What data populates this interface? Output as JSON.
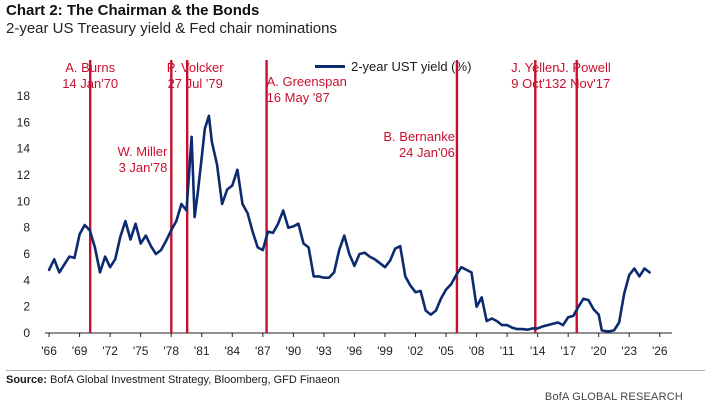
{
  "header": {
    "title": "Chart 2: The Chairman & the Bonds",
    "subtitle": "2-year US Treasury yield & Fed chair nominations"
  },
  "footer": {
    "source_label": "Source:",
    "source_text": "BofA Global Investment Strategy, Bloomberg, GFD Finaeon",
    "brand": "BofA GLOBAL RESEARCH"
  },
  "colors": {
    "series": "#0c2b6e",
    "events": "#c8102e",
    "annotations": "#c8102e",
    "axis": "#222222"
  },
  "chart_data": {
    "type": "line",
    "title": "2-year US Treasury yield & Fed chair nominations",
    "xlabel": "",
    "ylabel": "",
    "xlim": [
      1965.6,
      2027.2
    ],
    "ylim": [
      0,
      18
    ],
    "yticks": [
      0,
      2,
      4,
      6,
      8,
      10,
      12,
      14,
      16,
      18
    ],
    "xticks": [
      "'66",
      "'69",
      "'72",
      "'75",
      "'78",
      "'81",
      "'84",
      "'87",
      "'90",
      "'93",
      "'96",
      "'99",
      "'02",
      "'05",
      "'08",
      "'11",
      "'14",
      "'17",
      "'20",
      "'23",
      "'26"
    ],
    "xtick_years": [
      1966,
      1969,
      1972,
      1975,
      1978,
      1981,
      1984,
      1987,
      1990,
      1993,
      1996,
      1999,
      2002,
      2005,
      2008,
      2011,
      2014,
      2017,
      2020,
      2023,
      2026
    ],
    "legend": "2-year UST yield (%)",
    "series": [
      {
        "name": "2-year UST yield (%)",
        "x": [
          1966.0,
          1966.5,
          1967.0,
          1967.5,
          1968.0,
          1968.5,
          1969.0,
          1969.5,
          1970.0,
          1970.5,
          1971.0,
          1971.5,
          1972.0,
          1972.5,
          1973.0,
          1973.5,
          1974.0,
          1974.5,
          1975.0,
          1975.5,
          1976.0,
          1976.5,
          1977.0,
          1977.5,
          1978.0,
          1978.5,
          1979.0,
          1979.5,
          1980.0,
          1980.3,
          1980.6,
          1981.0,
          1981.3,
          1981.7,
          1982.0,
          1982.5,
          1983.0,
          1983.5,
          1984.0,
          1984.5,
          1985.0,
          1985.5,
          1986.0,
          1986.5,
          1987.0,
          1987.5,
          1988.0,
          1988.5,
          1989.0,
          1989.5,
          1990.0,
          1990.5,
          1991.0,
          1991.5,
          1992.0,
          1992.5,
          1993.0,
          1993.5,
          1994.0,
          1994.5,
          1995.0,
          1995.5,
          1996.0,
          1996.5,
          1997.0,
          1997.5,
          1998.0,
          1998.5,
          1999.0,
          1999.5,
          2000.0,
          2000.5,
          2001.0,
          2001.5,
          2002.0,
          2002.5,
          2003.0,
          2003.5,
          2004.0,
          2004.5,
          2005.0,
          2005.5,
          2006.0,
          2006.5,
          2007.0,
          2007.5,
          2008.0,
          2008.5,
          2009.0,
          2009.5,
          2010.0,
          2010.5,
          2011.0,
          2011.5,
          2012.0,
          2012.5,
          2013.0,
          2013.5,
          2014.0,
          2014.5,
          2015.0,
          2015.5,
          2016.0,
          2016.5,
          2017.0,
          2017.5,
          2018.0,
          2018.5,
          2019.0,
          2019.5,
          2020.0,
          2020.3,
          2020.6,
          2021.0,
          2021.5,
          2022.0,
          2022.5,
          2023.0,
          2023.5,
          2024.0,
          2024.5,
          2025.0
        ],
        "values": [
          4.8,
          5.6,
          4.6,
          5.2,
          5.8,
          5.7,
          7.5,
          8.2,
          7.8,
          6.5,
          4.6,
          5.8,
          5.0,
          5.6,
          7.3,
          8.5,
          7.1,
          8.3,
          6.8,
          7.4,
          6.6,
          6.0,
          6.3,
          7.0,
          7.8,
          8.5,
          9.8,
          9.3,
          14.9,
          8.8,
          10.6,
          13.4,
          15.5,
          16.5,
          14.5,
          12.8,
          9.8,
          10.9,
          11.2,
          12.4,
          9.8,
          9.1,
          7.7,
          6.5,
          6.3,
          7.7,
          7.6,
          8.3,
          9.3,
          8.0,
          8.1,
          8.3,
          6.8,
          6.5,
          4.3,
          4.3,
          4.2,
          4.2,
          4.6,
          6.3,
          7.4,
          6.0,
          5.1,
          6.0,
          6.1,
          5.8,
          5.6,
          5.3,
          5.0,
          5.5,
          6.4,
          6.6,
          4.3,
          3.6,
          3.1,
          3.2,
          1.7,
          1.4,
          1.7,
          2.6,
          3.3,
          3.7,
          4.4,
          5.0,
          4.8,
          4.6,
          2.0,
          2.7,
          0.9,
          1.1,
          0.9,
          0.6,
          0.6,
          0.4,
          0.3,
          0.3,
          0.25,
          0.35,
          0.35,
          0.5,
          0.6,
          0.7,
          0.8,
          0.6,
          1.2,
          1.3,
          2.0,
          2.6,
          2.5,
          1.8,
          1.4,
          0.2,
          0.15,
          0.12,
          0.2,
          0.8,
          3.0,
          4.4,
          4.9,
          4.3,
          4.9,
          4.6
        ]
      }
    ],
    "events": [
      {
        "name": "A. Burns",
        "date": "14 Jan'70",
        "x": 1970.04
      },
      {
        "name": "W. Miller",
        "date": "3 Jan'78",
        "x": 1978.01
      },
      {
        "name": "P. Volcker",
        "date": "27 Jul '79",
        "x": 1979.57
      },
      {
        "name": "A. Greenspan",
        "date": "16 May '87",
        "x": 1987.37
      },
      {
        "name": "B. Bernanke",
        "date": "24 Jan'06",
        "x": 2006.07
      },
      {
        "name": "J. Yellen",
        "date": "9 Oct'13",
        "x": 2013.77
      },
      {
        "name": "J. Powell",
        "date": "2 Nov'17",
        "x": 2017.84
      }
    ]
  }
}
